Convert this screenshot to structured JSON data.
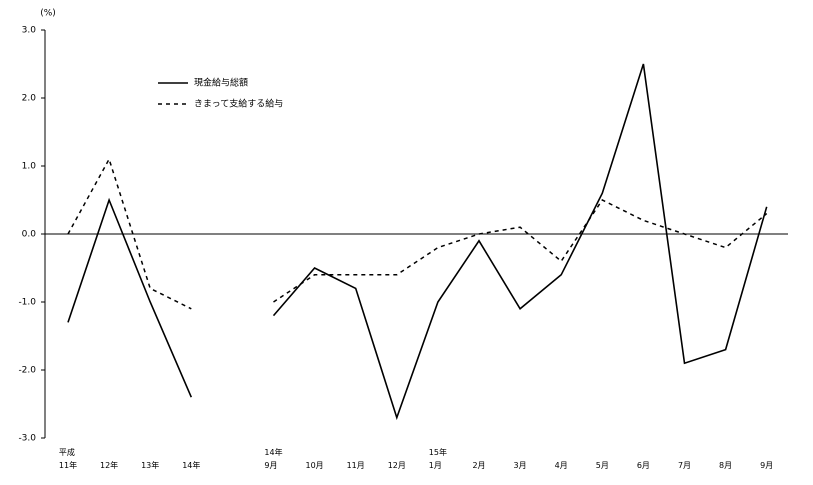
{
  "chart_data": {
    "type": "line",
    "y_unit_label": "(%)",
    "categories": [
      "平成\n11年",
      "12年",
      "13年",
      "14年",
      null,
      "14年\n9月",
      "10月",
      "11月",
      "12月",
      "15年\n1月",
      "2月",
      "3月",
      "4月",
      "5月",
      "6月",
      "7月",
      "8月",
      "9月"
    ],
    "series": [
      {
        "name": "現金給与総額",
        "color": "#000000",
        "dash": "solid",
        "values": [
          -1.3,
          0.5,
          -1.0,
          -2.4,
          null,
          -1.2,
          -0.5,
          -0.8,
          -2.7,
          -1.0,
          -0.1,
          -1.1,
          -0.6,
          0.6,
          2.5,
          -1.9,
          -1.7,
          0.4
        ]
      },
      {
        "name": "きまって支給する給与",
        "color": "#000000",
        "dash": "dashed",
        "values": [
          0.0,
          1.1,
          -0.8,
          -1.1,
          null,
          -1.0,
          -0.6,
          -0.6,
          -0.6,
          -0.2,
          0.0,
          0.1,
          -0.4,
          0.5,
          0.2,
          0.0,
          -0.2,
          0.3
        ]
      }
    ],
    "ylim": [
      -3,
      3
    ],
    "yticks": [
      {
        "value": 3,
        "label": "3.0"
      },
      {
        "value": 2,
        "label": "2.0"
      },
      {
        "value": 1,
        "label": "1.0"
      },
      {
        "value": 0,
        "label": "0.0"
      },
      {
        "value": -1,
        "label": "-1.0"
      },
      {
        "value": -2,
        "label": "-2.0"
      },
      {
        "value": -3,
        "label": "-3.0"
      }
    ],
    "grid": false
  }
}
